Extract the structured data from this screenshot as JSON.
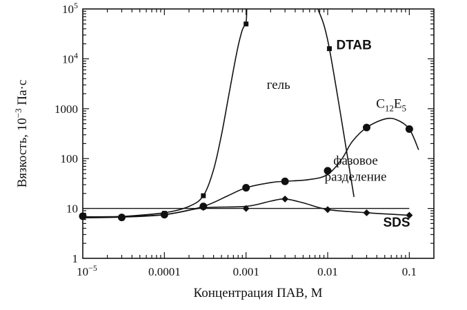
{
  "chart_data": {
    "type": "line",
    "title": "",
    "xlabel": "Концентрация ПАВ, М",
    "ylabel_parts": {
      "main": "Вязкость, 10",
      "exp": "−3",
      "unit": " Па·с"
    },
    "x_scale": "log",
    "y_scale": "log",
    "xlim": [
      1e-05,
      0.2
    ],
    "ylim": [
      1,
      100000
    ],
    "x_ticks": [
      {
        "value": 1e-05,
        "base": "10",
        "exp": "−5",
        "label": ""
      },
      {
        "value": 0.0001,
        "label": "0.0001"
      },
      {
        "value": 0.001,
        "label": "0.001"
      },
      {
        "value": 0.01,
        "label": "0.01"
      },
      {
        "value": 0.1,
        "label": "0.1"
      }
    ],
    "y_ticks": [
      {
        "value": 1,
        "label": "1"
      },
      {
        "value": 10,
        "label": "10"
      },
      {
        "value": 100,
        "label": "100"
      },
      {
        "value": 1000,
        "label": "1000"
      },
      {
        "value": 10000,
        "base": "10",
        "exp": "4",
        "label": ""
      },
      {
        "value": 100000,
        "base": "10",
        "exp": "5",
        "label": ""
      }
    ],
    "grid": false,
    "series": [
      {
        "name": "DTAB",
        "marker": "square",
        "points": [
          {
            "x": 1e-05,
            "y": 7
          },
          {
            "x": 0.0001,
            "y": 8
          },
          {
            "x": 0.0003,
            "y": 18
          },
          {
            "x": 0.001,
            "y": 50000
          }
        ],
        "curve": [
          [
            1e-05,
            6.5
          ],
          [
            3e-05,
            6.9
          ],
          [
            0.0001,
            8.2
          ],
          [
            0.0002,
            11
          ],
          [
            0.0003,
            18
          ],
          [
            0.0004,
            60
          ],
          [
            0.0005,
            300
          ],
          [
            0.0006,
            1500
          ],
          [
            0.0007,
            6000
          ],
          [
            0.0008,
            18000
          ],
          [
            0.0009,
            38000
          ],
          [
            0.001,
            55000
          ],
          [
            0.00102,
            100000
          ]
        ]
      },
      {
        "name": "DTAB",
        "marker": "square",
        "points": [
          {
            "x": 0.0105,
            "y": 16000
          }
        ],
        "curve": [
          [
            0.0076,
            100000
          ],
          [
            0.0105,
            16000
          ],
          [
            0.021,
            17
          ]
        ]
      },
      {
        "name": "C12E5",
        "marker": "circle",
        "points": [
          {
            "x": 1e-05,
            "y": 7
          },
          {
            "x": 3e-05,
            "y": 6.6
          },
          {
            "x": 0.0001,
            "y": 7.5
          },
          {
            "x": 0.0003,
            "y": 11
          },
          {
            "x": 0.001,
            "y": 26
          },
          {
            "x": 0.003,
            "y": 35
          },
          {
            "x": 0.01,
            "y": 57
          },
          {
            "x": 0.03,
            "y": 420
          },
          {
            "x": 0.1,
            "y": 390
          }
        ],
        "curve": [
          [
            1e-05,
            6.5
          ],
          [
            3e-05,
            6.7
          ],
          [
            0.0001,
            7.5
          ],
          [
            0.0003,
            11
          ],
          [
            0.0006,
            18
          ],
          [
            0.001,
            26
          ],
          [
            0.002,
            33
          ],
          [
            0.003,
            35
          ],
          [
            0.006,
            38
          ],
          [
            0.01,
            48
          ],
          [
            0.015,
            100
          ],
          [
            0.02,
            220
          ],
          [
            0.03,
            420
          ],
          [
            0.05,
            620
          ],
          [
            0.07,
            600
          ],
          [
            0.1,
            390
          ],
          [
            0.13,
            150
          ]
        ]
      },
      {
        "name": "SDS",
        "marker": "diamond",
        "points": [
          {
            "x": 1e-05,
            "y": 7
          },
          {
            "x": 0.0001,
            "y": 7.5
          },
          {
            "x": 0.0003,
            "y": 10.5
          },
          {
            "x": 0.001,
            "y": 10
          },
          {
            "x": 0.003,
            "y": 15.5
          },
          {
            "x": 0.01,
            "y": 9.5
          },
          {
            "x": 0.03,
            "y": 8.2
          },
          {
            "x": 0.1,
            "y": 7.3
          }
        ],
        "curve": [
          [
            1e-05,
            6.8
          ],
          [
            3e-05,
            6.9
          ],
          [
            0.0001,
            7.5
          ],
          [
            0.0003,
            10.3
          ],
          [
            0.001,
            11
          ],
          [
            0.002,
            14
          ],
          [
            0.003,
            15.5
          ],
          [
            0.005,
            13
          ],
          [
            0.01,
            9.5
          ],
          [
            0.03,
            8.2
          ],
          [
            0.1,
            7.3
          ]
        ]
      }
    ],
    "reference_lines": [
      {
        "y": 10,
        "x_from": 1e-05,
        "x_to": 0.1
      }
    ],
    "annotations": [
      {
        "text": "гель",
        "x": 0.0025,
        "y": 2500,
        "style": "plain"
      },
      {
        "text": "DTAB",
        "x": 0.021,
        "y": 15500,
        "style": "bold"
      },
      {
        "base": "C",
        "sub": "12",
        "mid": "E",
        "sub2": "5",
        "x": 0.06,
        "y": 1050,
        "style": "plain"
      },
      {
        "text": "фазовое",
        "x": 0.022,
        "y": 75,
        "style": "plain"
      },
      {
        "text": "разделение",
        "x": 0.022,
        "y": 36,
        "style": "plain"
      },
      {
        "text": "SDS",
        "x": 0.07,
        "y": 4.3,
        "style": "bold"
      }
    ]
  }
}
